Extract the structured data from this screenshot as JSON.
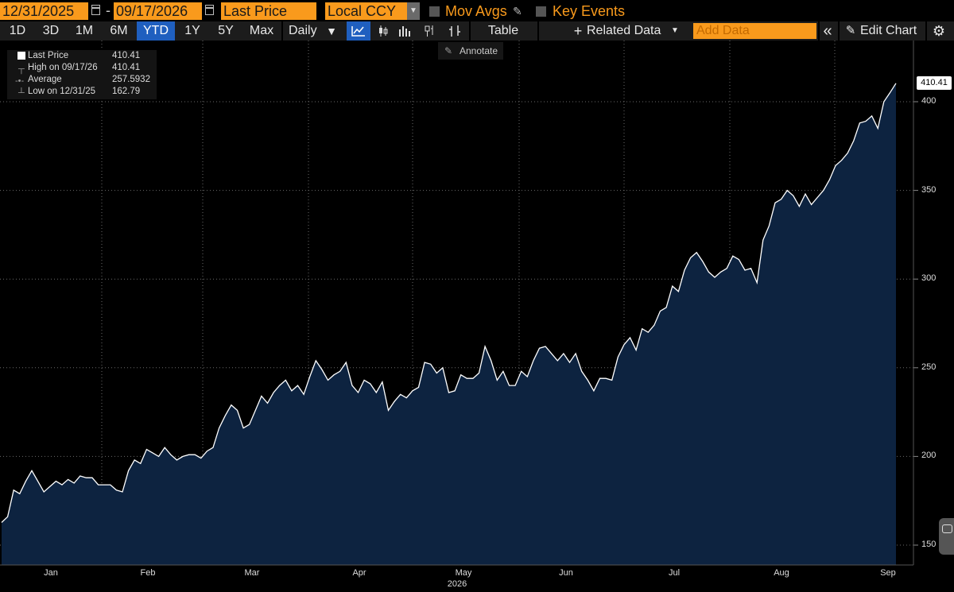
{
  "toolbar": {
    "start_date": "12/31/2025",
    "end_date": "09/17/2026",
    "date_separator": "-",
    "field": "Last Price",
    "currency": "Local CCY",
    "mov_avgs": "Mov Avgs",
    "key_events": "Key Events",
    "ranges": [
      "1D",
      "3D",
      "1M",
      "6M",
      "YTD",
      "1Y",
      "5Y",
      "Max"
    ],
    "active_range": "YTD",
    "periodicity": "Daily",
    "periodicity_caret": "▼",
    "table": "Table",
    "related_data": "Related Data",
    "add_data_placeholder": "Add Data",
    "collapse": "«",
    "edit_chart": "Edit Chart",
    "annotate": "Annotate",
    "accent_color": "#f99a1c",
    "active_color": "#1f5fbf"
  },
  "legend": {
    "rows": [
      {
        "label": "Last Price",
        "value": "410.41"
      },
      {
        "label": "High on 09/17/26",
        "value": "410.41"
      },
      {
        "label": "Average",
        "value": "257.5932"
      },
      {
        "label": "Low on 12/31/25",
        "value": "162.79"
      }
    ]
  },
  "last_price_tag": "410.41",
  "x_year_label": "2026",
  "chart_data": {
    "type": "area",
    "series": [
      {
        "name": "Last Price",
        "values": [
          162.79,
          166,
          181,
          179,
          186,
          192,
          186,
          180,
          183,
          186,
          184,
          187,
          185,
          189,
          188,
          188,
          184,
          184,
          184,
          181,
          180,
          192,
          198,
          196,
          204,
          202,
          200,
          205,
          201,
          198,
          200,
          201,
          201,
          199,
          203,
          205,
          216,
          223,
          229,
          226,
          216,
          218,
          226,
          234,
          230,
          236,
          240,
          243,
          237,
          240,
          235,
          245,
          254,
          249,
          243,
          246,
          248,
          253,
          240,
          236,
          243,
          241,
          236,
          242,
          226,
          231,
          235,
          233,
          237,
          239,
          253,
          252,
          247,
          250,
          236,
          237,
          246,
          244,
          244,
          247,
          262,
          254,
          243,
          248,
          240,
          240,
          248,
          245,
          254,
          261,
          262,
          258,
          254,
          258,
          253,
          258,
          248,
          243,
          237,
          244,
          244,
          243,
          256,
          263,
          267,
          260,
          272,
          270,
          274,
          282,
          284,
          296,
          293,
          305,
          312,
          315,
          310,
          304,
          301,
          304,
          306,
          313,
          311,
          305,
          306,
          298,
          322,
          330,
          343,
          345,
          350,
          347,
          341,
          348,
          342,
          346,
          350,
          356,
          364,
          367,
          371,
          378,
          388,
          389,
          392,
          385,
          400,
          405,
          410.41
        ],
        "color": "#ffffff",
        "fill": "#0d2340"
      }
    ],
    "x_ticks": [
      "Jan",
      "Feb",
      "Mar",
      "Apr",
      "May",
      "Jun",
      "Jul",
      "Aug",
      "Sep"
    ],
    "y_ticks": [
      150,
      200,
      250,
      300,
      350,
      400
    ],
    "ylim": [
      145,
      420
    ],
    "grid": true,
    "legend_position": "top-left"
  }
}
